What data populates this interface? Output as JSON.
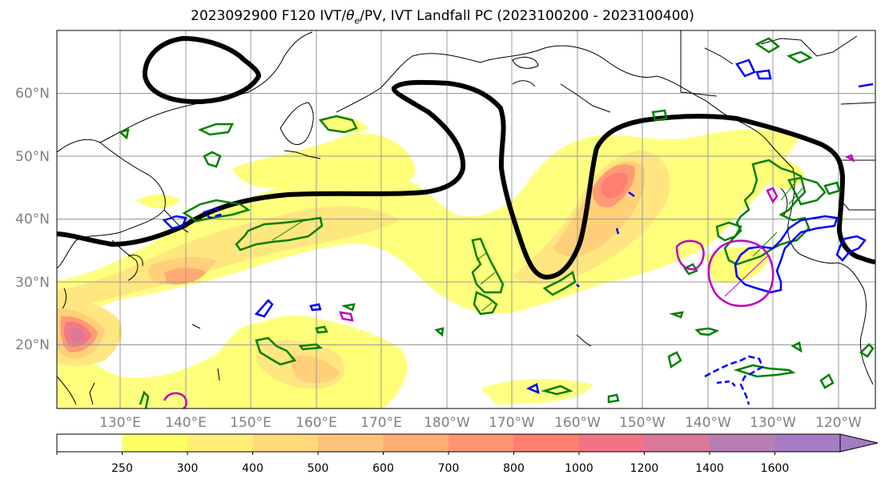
{
  "title": {
    "prefix": "2023092900 F120 IVT/",
    "theta": "θ",
    "theta_sub": "e",
    "suffix": "/PV, IVT Landfall PC (2023100200 - 2023100400)"
  },
  "lat_labels": [
    "60°N",
    "50°N",
    "40°N",
    "30°N",
    "20°N"
  ],
  "lon_labels": [
    "130°E",
    "140°E",
    "150°E",
    "160°E",
    "170°E",
    "180°W",
    "170°W",
    "160°W",
    "150°W",
    "140°W",
    "130°W",
    "120°W"
  ],
  "colorbar": {
    "ticks": [
      "250",
      "300",
      "400",
      "500",
      "600",
      "700",
      "800",
      "1000",
      "1200",
      "1400",
      "1600"
    ],
    "colors": [
      "#ffffff",
      "#ffff66",
      "#ffee77",
      "#ffd97a",
      "#ffc27a",
      "#ffad76",
      "#ff9570",
      "#ff7e72",
      "#f27385",
      "#d9789a",
      "#b87db2",
      "#a57cc4"
    ]
  },
  "legend_colors": {
    "pv_contour": "#000000",
    "green_contour": "#008000",
    "blue_contour": "#0000ff",
    "magenta_contour": "#bf00bf"
  }
}
